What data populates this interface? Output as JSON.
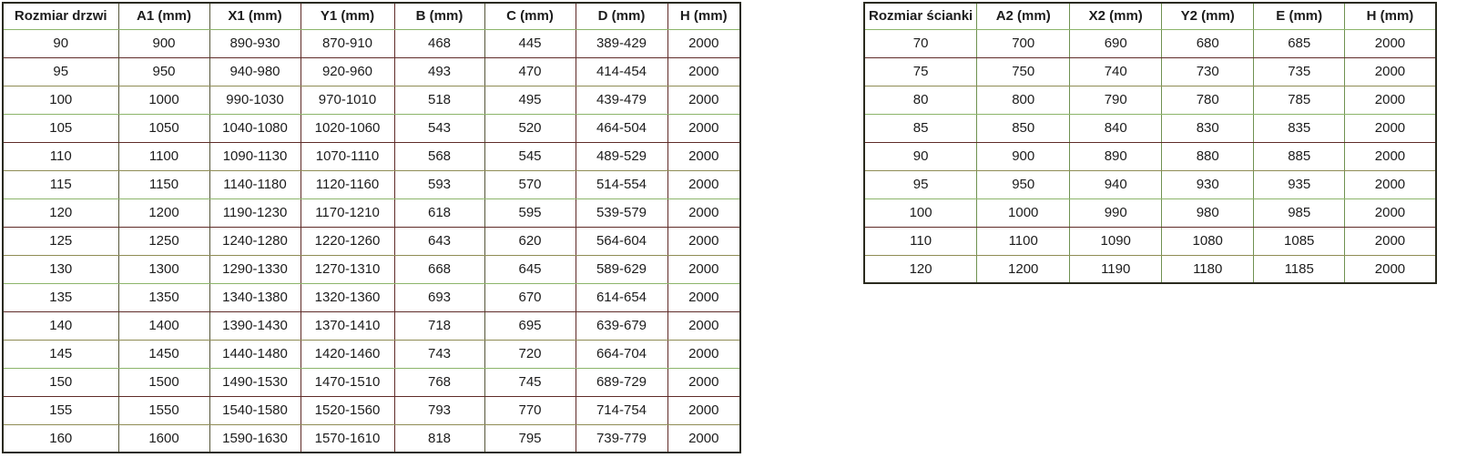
{
  "chart_data": [
    {
      "type": "table",
      "name": "door-size-table",
      "headers": [
        "Rozmiar drzwi",
        "A1 (mm)",
        "X1 (mm)",
        "Y1 (mm)",
        "B (mm)",
        "C (mm)",
        "D (mm)",
        "H (mm)"
      ],
      "rows": [
        [
          "90",
          "900",
          "890-930",
          "870-910",
          "468",
          "445",
          "389-429",
          "2000"
        ],
        [
          "95",
          "950",
          "940-980",
          "920-960",
          "493",
          "470",
          "414-454",
          "2000"
        ],
        [
          "100",
          "1000",
          "990-1030",
          "970-1010",
          "518",
          "495",
          "439-479",
          "2000"
        ],
        [
          "105",
          "1050",
          "1040-1080",
          "1020-1060",
          "543",
          "520",
          "464-504",
          "2000"
        ],
        [
          "110",
          "1100",
          "1090-1130",
          "1070-1110",
          "568",
          "545",
          "489-529",
          "2000"
        ],
        [
          "115",
          "1150",
          "1140-1180",
          "1120-1160",
          "593",
          "570",
          "514-554",
          "2000"
        ],
        [
          "120",
          "1200",
          "1190-1230",
          "1170-1210",
          "618",
          "595",
          "539-579",
          "2000"
        ],
        [
          "125",
          "1250",
          "1240-1280",
          "1220-1260",
          "643",
          "620",
          "564-604",
          "2000"
        ],
        [
          "130",
          "1300",
          "1290-1330",
          "1270-1310",
          "668",
          "645",
          "589-629",
          "2000"
        ],
        [
          "135",
          "1350",
          "1340-1380",
          "1320-1360",
          "693",
          "670",
          "614-654",
          "2000"
        ],
        [
          "140",
          "1400",
          "1390-1430",
          "1370-1410",
          "718",
          "695",
          "639-679",
          "2000"
        ],
        [
          "145",
          "1450",
          "1440-1480",
          "1420-1460",
          "743",
          "720",
          "664-704",
          "2000"
        ],
        [
          "150",
          "1500",
          "1490-1530",
          "1470-1510",
          "768",
          "745",
          "689-729",
          "2000"
        ],
        [
          "155",
          "1550",
          "1540-1580",
          "1520-1560",
          "793",
          "770",
          "714-754",
          "2000"
        ],
        [
          "160",
          "1600",
          "1590-1630",
          "1570-1610",
          "818",
          "795",
          "739-779",
          "2000"
        ]
      ]
    },
    {
      "type": "table",
      "name": "wall-size-table",
      "headers": [
        "Rozmiar ścianki",
        "A2 (mm)",
        "X2 (mm)",
        "Y2 (mm)",
        "E (mm)",
        "H (mm)"
      ],
      "rows": [
        [
          "70",
          "700",
          "690",
          "680",
          "685",
          "2000"
        ],
        [
          "75",
          "750",
          "740",
          "730",
          "735",
          "2000"
        ],
        [
          "80",
          "800",
          "790",
          "780",
          "785",
          "2000"
        ],
        [
          "85",
          "850",
          "840",
          "830",
          "835",
          "2000"
        ],
        [
          "90",
          "900",
          "890",
          "880",
          "885",
          "2000"
        ],
        [
          "95",
          "950",
          "940",
          "930",
          "935",
          "2000"
        ],
        [
          "100",
          "1000",
          "990",
          "980",
          "985",
          "2000"
        ],
        [
          "110",
          "1100",
          "1090",
          "1080",
          "1085",
          "2000"
        ],
        [
          "120",
          "1200",
          "1190",
          "1180",
          "1185",
          "2000"
        ]
      ]
    }
  ],
  "colors": {
    "background": "#ffffff",
    "text": "#1c1c1c",
    "outer_border": "#2a2a1e",
    "row_line_green": "#8cb56a",
    "row_line_maroon": "#5f2b28",
    "row_line_olive": "#8f8c55",
    "vertical_olive": "#56563a",
    "vertical_maroon": "#5f2b28",
    "vertical_green": "#6f9150"
  }
}
